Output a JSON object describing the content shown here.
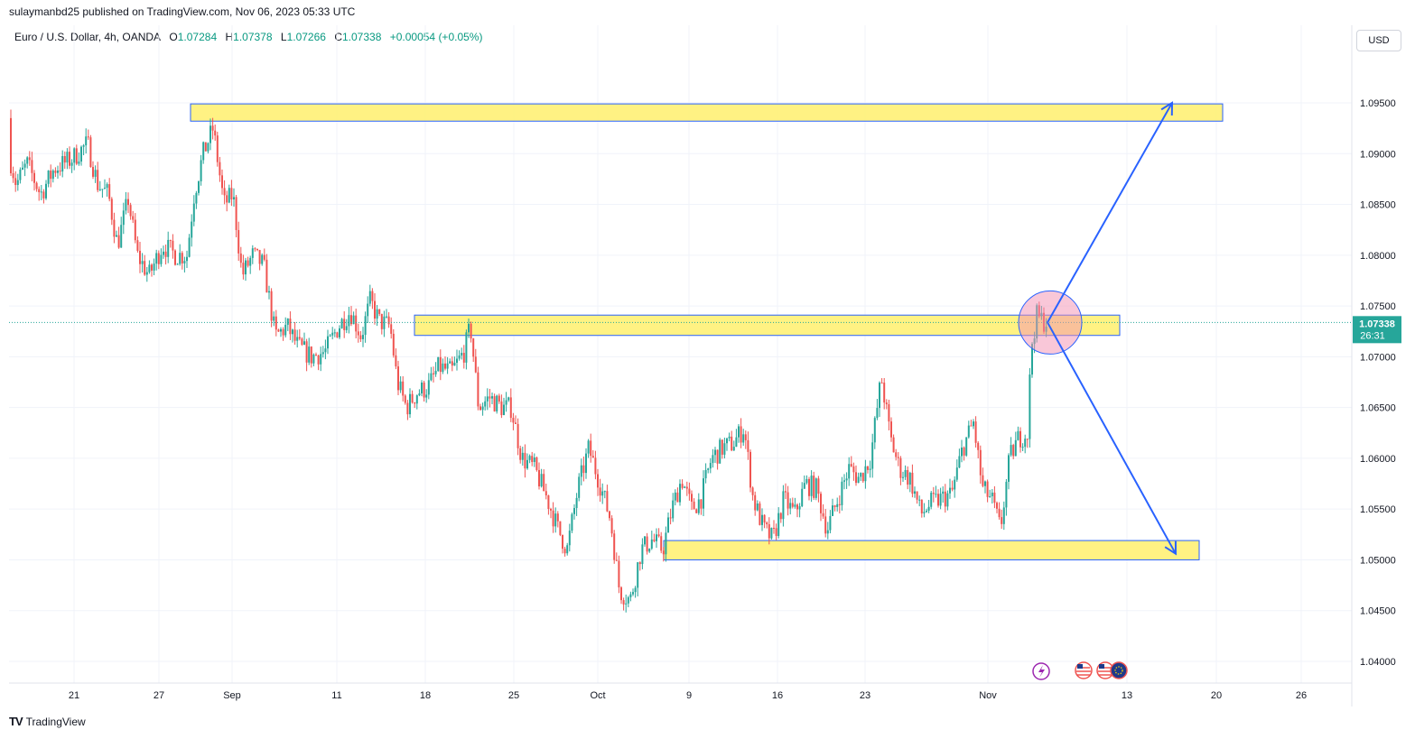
{
  "header": {
    "publisher_line": "sulaymanbd25 published on TradingView.com, Nov 06, 2023 05:33 UTC"
  },
  "legend": {
    "symbol": "Euro / U.S. Dollar, 4h, OANDA",
    "open_label": "O",
    "open": "1.07284",
    "high_label": "H",
    "high": "1.07378",
    "low_label": "L",
    "low": "1.07266",
    "close_label": "C",
    "close": "1.07338",
    "change": "+0.00054 (+0.05%)"
  },
  "currency_button": "USD",
  "footer": {
    "logo_text": "TradingView"
  },
  "colors": {
    "up": "#26a69a",
    "down": "#ef5350",
    "zone_fill": "#fff176",
    "zone_border": "#2962ff",
    "arrow": "#2962ff",
    "circle": "#f48fb1",
    "price_tag": "#26a69a"
  },
  "chart_data": {
    "type": "candlestick",
    "price_axis": {
      "ticks": [
        "1.09500",
        "1.09000",
        "1.08500",
        "1.08000",
        "1.07500",
        "1.07000",
        "1.06500",
        "1.06000",
        "1.05500",
        "1.05000",
        "1.04500",
        "1.04000"
      ],
      "ylim": [
        1.039,
        1.099
      ]
    },
    "time_axis": {
      "ticks": [
        "21",
        "27",
        "Sep",
        "11",
        "18",
        "25",
        "Oct",
        "9",
        "16",
        "23",
        "Nov",
        "13",
        "20",
        "26"
      ]
    },
    "last_price": "1.07338",
    "countdown": "26:31",
    "series_path": [
      [
        0,
        1.0935
      ],
      [
        18,
        1.087
      ],
      [
        30,
        1.089
      ],
      [
        45,
        1.086
      ],
      [
        60,
        1.0885
      ],
      [
        80,
        1.0895
      ],
      [
        97,
        1.091
      ],
      [
        108,
        1.087
      ],
      [
        120,
        1.086
      ],
      [
        130,
        1.081
      ],
      [
        142,
        1.0855
      ],
      [
        152,
        1.08
      ],
      [
        165,
        1.078
      ],
      [
        180,
        1.081
      ],
      [
        195,
        1.08
      ],
      [
        207,
        1.08
      ],
      [
        215,
        1.086
      ],
      [
        225,
        1.09
      ],
      [
        236,
        1.0925
      ],
      [
        248,
        1.085
      ],
      [
        258,
        1.086
      ],
      [
        268,
        1.078
      ],
      [
        280,
        1.08
      ],
      [
        292,
        1.079
      ],
      [
        305,
        1.072
      ],
      [
        318,
        1.073
      ],
      [
        330,
        1.071
      ],
      [
        345,
        1.07
      ],
      [
        360,
        1.0705
      ],
      [
        375,
        1.073
      ],
      [
        388,
        1.0745
      ],
      [
        400,
        1.072
      ],
      [
        410,
        1.0755
      ],
      [
        420,
        1.0735
      ],
      [
        432,
        1.073
      ],
      [
        440,
        1.0675
      ],
      [
        450,
        1.065
      ],
      [
        462,
        1.0665
      ],
      [
        474,
        1.067
      ],
      [
        486,
        1.069
      ],
      [
        500,
        1.0685
      ],
      [
        514,
        1.0705
      ],
      [
        521,
        1.073
      ],
      [
        530,
        1.065
      ],
      [
        542,
        1.066
      ],
      [
        556,
        1.065
      ],
      [
        566,
        1.065
      ],
      [
        578,
        1.06
      ],
      [
        592,
        1.059
      ],
      [
        606,
        1.056
      ],
      [
        618,
        1.053
      ],
      [
        628,
        1.051
      ],
      [
        640,
        1.057
      ],
      [
        652,
        1.061
      ],
      [
        666,
        1.057
      ],
      [
        676,
        1.054
      ],
      [
        686,
        1.047
      ],
      [
        698,
        1.046
      ],
      [
        710,
        1.051
      ],
      [
        722,
        1.052
      ],
      [
        734,
        1.051
      ],
      [
        744,
        1.055
      ],
      [
        755,
        1.058
      ],
      [
        766,
        1.055
      ],
      [
        776,
        1.056
      ],
      [
        788,
        1.06
      ],
      [
        800,
        1.061
      ],
      [
        812,
        1.0615
      ],
      [
        824,
        1.063
      ],
      [
        834,
        1.056
      ],
      [
        846,
        1.053
      ],
      [
        856,
        1.052
      ],
      [
        868,
        1.056
      ],
      [
        880,
        1.0545
      ],
      [
        892,
        1.0575
      ],
      [
        904,
        1.057
      ],
      [
        916,
        1.053
      ],
      [
        928,
        1.056
      ],
      [
        940,
        1.059
      ],
      [
        952,
        1.058
      ],
      [
        964,
        1.06
      ],
      [
        976,
        1.068
      ],
      [
        986,
        1.062
      ],
      [
        996,
        1.059
      ],
      [
        1008,
        1.058
      ],
      [
        1020,
        1.0545
      ],
      [
        1030,
        1.0555
      ],
      [
        1042,
        1.056
      ],
      [
        1054,
        1.0565
      ],
      [
        1066,
        1.061
      ],
      [
        1078,
        1.0635
      ],
      [
        1088,
        1.057
      ],
      [
        1098,
        1.056
      ],
      [
        1108,
        1.053
      ],
      [
        1118,
        1.06
      ],
      [
        1128,
        1.062
      ],
      [
        1138,
        1.0625
      ],
      [
        1142,
        1.071
      ],
      [
        1148,
        1.074
      ],
      [
        1156,
        1.0735
      ]
    ]
  },
  "annotations": {
    "zones": [
      {
        "from_x": 211,
        "to_x": 1354,
        "top": 1.0949,
        "bottom": 1.0932
      },
      {
        "from_x": 459,
        "to_x": 1240,
        "top": 1.0741,
        "bottom": 1.0721
      },
      {
        "from_x": 735,
        "to_x": 1328,
        "top": 1.0519,
        "bottom": 1.05
      }
    ],
    "circle": {
      "x": 1163,
      "price": 1.07337,
      "r": 35
    },
    "arrows": [
      {
        "from": [
          1160,
          1.07338
        ],
        "to": [
          1298,
          1.095
        ]
      },
      {
        "from": [
          1160,
          1.07338
        ],
        "to": [
          1302,
          1.0506
        ]
      }
    ]
  }
}
